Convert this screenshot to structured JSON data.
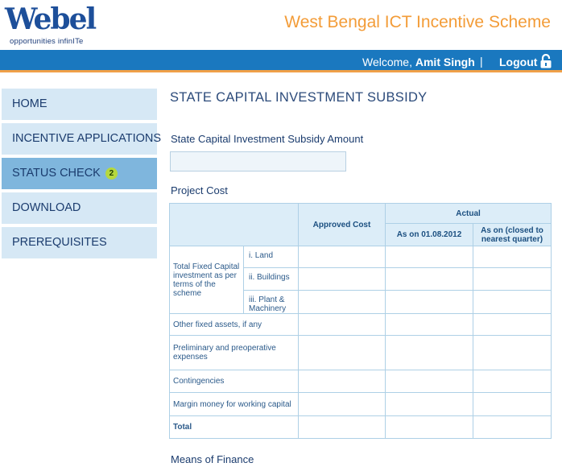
{
  "logo": {
    "word": "Webel",
    "tagline": "opportunities infinITe"
  },
  "site_title": "West Bengal ICT Incentive Scheme",
  "topbar": {
    "welcome_prefix": "Welcome,",
    "user_name": "Amit Singh",
    "separator": "|",
    "logout_label": "Logout"
  },
  "sidebar": {
    "items": [
      {
        "label": "HOME"
      },
      {
        "label": "INCENTIVE APPLICATIONS"
      },
      {
        "label": "STATUS CHECK",
        "badge": "2"
      },
      {
        "label": "DOWNLOAD"
      },
      {
        "label": "PREREQUISITES"
      }
    ]
  },
  "main": {
    "heading": "STATE CAPITAL INVESTMENT SUBSIDY",
    "amount_label": "State Capital Investment Subsidy Amount",
    "amount_value": "",
    "project_cost_label": "Project Cost",
    "means_of_finance_label": "Means of Finance"
  },
  "table": {
    "headers": {
      "approved_cost": "Approved Cost",
      "actual": "Actual",
      "as_on_date": "As on 01.08.2012",
      "as_on_quarter": "As on (closed to nearest quarter)"
    },
    "group_label": "Total Fixed Capital investment as per terms of the scheme",
    "sub_rows": [
      "i. Land",
      "ii. Buildings",
      "iii. Plant & Machinery"
    ],
    "rows": [
      "Other fixed assets, if any",
      "Preliminary and preoperative expenses",
      "Contingencies",
      "Margin money for working capital",
      "Total"
    ]
  },
  "colors": {
    "brand_blue": "#1a78bf",
    "accent_orange": "#f39c38",
    "nav_bg": "#d6e8f5",
    "nav_active_bg": "#7fb6dd",
    "badge_green": "#b5d83f"
  }
}
